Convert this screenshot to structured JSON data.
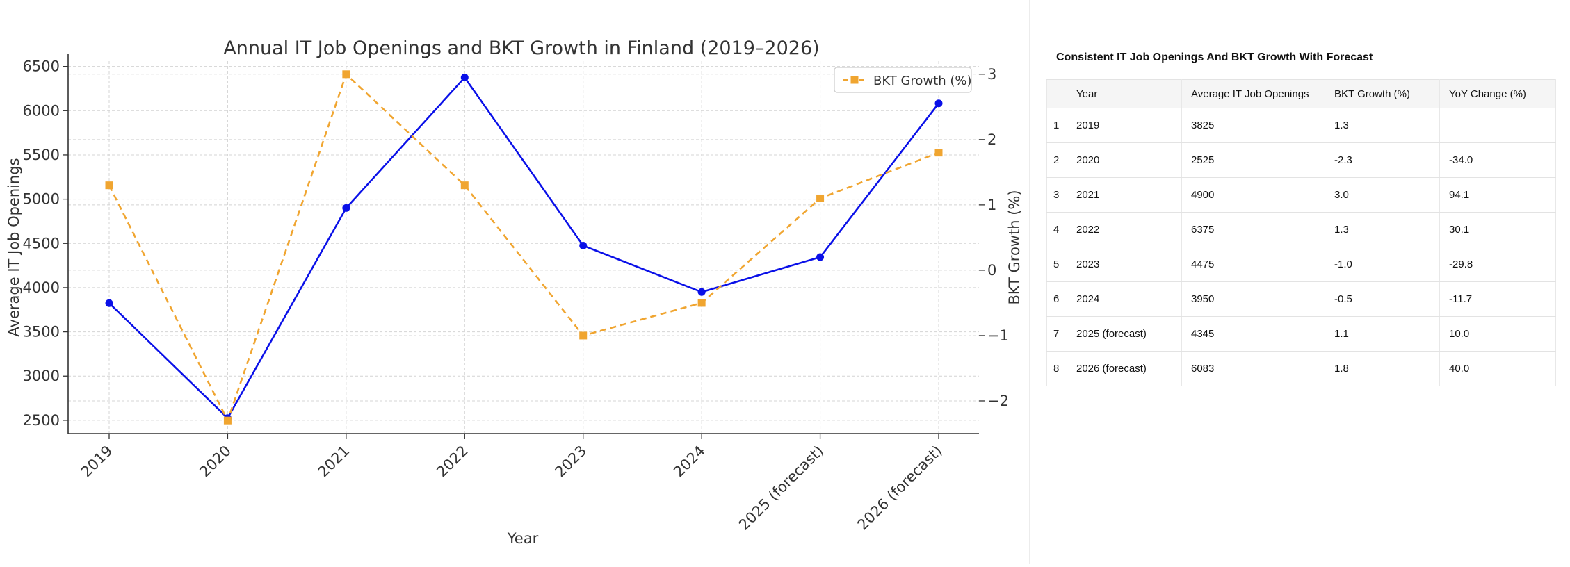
{
  "chart_data": {
    "type": "line",
    "title": "Annual IT Job Openings and BKT Growth in Finland (2019–2026)",
    "xlabel": "Year",
    "ylabel": "Average IT Job Openings",
    "y2label": "BKT Growth (%)",
    "categories": [
      "2019",
      "2020",
      "2021",
      "2022",
      "2023",
      "2024",
      "2025 (forecast)",
      "2026 (forecast)"
    ],
    "ylim": [
      2350,
      6560
    ],
    "y2lim": [
      -2.5,
      3.2
    ],
    "yticks": [
      2500,
      3000,
      3500,
      4000,
      4500,
      5000,
      5500,
      6000,
      6500
    ],
    "y2ticks": [
      -2,
      -1,
      0,
      1,
      2,
      3
    ],
    "grid": true,
    "legend_position": "top-right",
    "series": [
      {
        "name": "Average IT Job Openings",
        "axis": "left",
        "color": "#0a10e8",
        "style": "solid",
        "marker": "circle",
        "values": [
          3825,
          2525,
          4900,
          6375,
          4475,
          3950,
          4345,
          6083
        ]
      },
      {
        "name": "BKT Growth (%)",
        "axis": "right",
        "color": "#f0a530",
        "style": "dashed",
        "marker": "square",
        "values": [
          1.3,
          -2.3,
          3.0,
          1.3,
          -1.0,
          -0.5,
          1.1,
          1.8
        ]
      }
    ],
    "legend_label": "BKT Growth (%)"
  },
  "table": {
    "title": "Consistent IT Job Openings And BKT Growth With Forecast",
    "columns": [
      "",
      "Year",
      "Average IT Job Openings",
      "BKT Growth (%)",
      "YoY Change (%)"
    ],
    "rows": [
      [
        "1",
        "2019",
        "3825",
        "1.3",
        ""
      ],
      [
        "2",
        "2020",
        "2525",
        "-2.3",
        "-34.0"
      ],
      [
        "3",
        "2021",
        "4900",
        "3.0",
        "94.1"
      ],
      [
        "4",
        "2022",
        "6375",
        "1.3",
        "30.1"
      ],
      [
        "5",
        "2023",
        "4475",
        "-1.0",
        "-29.8"
      ],
      [
        "6",
        "2024",
        "3950",
        "-0.5",
        "-11.7"
      ],
      [
        "7",
        "2025 (forecast)",
        "4345",
        "1.1",
        "10.0"
      ],
      [
        "8",
        "2026 (forecast)",
        "6083",
        "1.8",
        "40.0"
      ]
    ]
  }
}
